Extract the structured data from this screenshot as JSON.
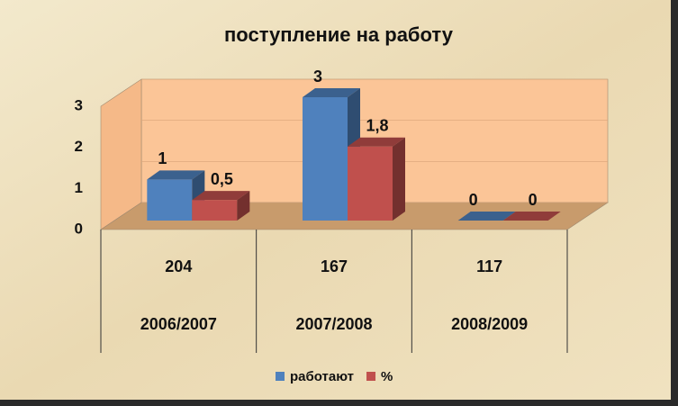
{
  "chart_data": {
    "type": "bar3d",
    "title": "поступление на работу",
    "categories": [
      "204",
      "167",
      "117"
    ],
    "category_groups": [
      "2006/2007",
      "2007/2008",
      "2008/2009"
    ],
    "series": [
      {
        "name": "работают",
        "color": "#4f81bd",
        "values": [
          1,
          3,
          0
        ]
      },
      {
        "name": "%",
        "color": "#c0504d",
        "values": [
          0.5,
          1.8,
          0
        ],
        "value_labels": [
          "0,5",
          "1,8",
          "0"
        ]
      }
    ],
    "ylim": [
      0,
      3
    ],
    "yticks": [
      0,
      1,
      2,
      3
    ],
    "grid": false,
    "legend": "bottom"
  }
}
